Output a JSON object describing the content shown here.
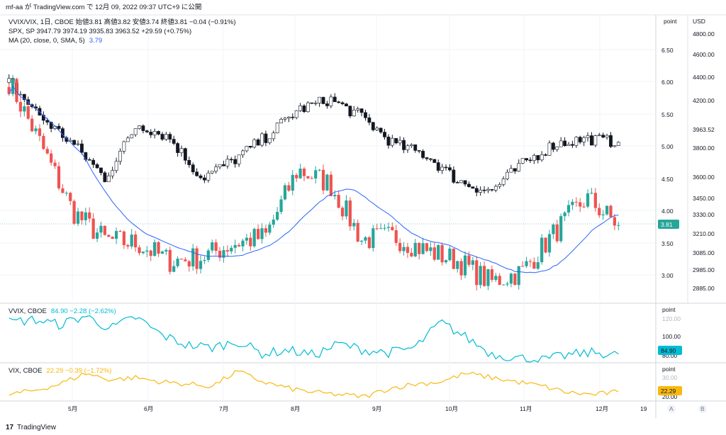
{
  "header": {
    "publish_line": "mf-aa が TradingView.com で 12月 09, 2022 09:37 UTC+9 に公開"
  },
  "footer": {
    "brand": "TradingView"
  },
  "panes": {
    "main": {
      "unit_left": "point",
      "unit_right": "USD",
      "legend": [
        {
          "text": "VVIX/VIX, 1日, CBOE  始値3.81  高値3.82  安値3.74  終値3.81  −0.04 (−0.91%)"
        },
        {
          "text": "SPX, SP  3947.79  3974.19  3935.83  3963.52  +29.59 (+0.75%)"
        },
        {
          "text": "MA (20, close, 0, SMA, 5)",
          "value": "3.79"
        }
      ],
      "left_ticks": [
        "6.50",
        "6.00",
        "5.50",
        "5.00",
        "4.50",
        "4.00",
        "3.50",
        "3.00"
      ],
      "right_ticks": [
        "4800.00",
        "4600.00",
        "4400.00",
        "4200.00",
        "4000.00",
        "3800.00",
        "3600.00",
        "3450.00",
        "3330.00",
        "3210.00",
        "3085.00",
        "2985.00",
        "2885.00"
      ],
      "last_left": "3.81",
      "last_right": "3963.52"
    },
    "vvix": {
      "label": "VVIX, CBOE",
      "value_text": "84.90  −2.28 (−2.62%)",
      "unit": "point",
      "ticks": [
        "120.00",
        "100.00",
        "80.00"
      ],
      "last": "84.90"
    },
    "vix": {
      "label": "VIX, CBOE",
      "value_text": "22.29  −0.39 (−1.72%)",
      "unit": "point",
      "ticks": [
        "30.00",
        "20.00"
      ],
      "last": "22.29"
    }
  },
  "x_axis": {
    "labels": [
      "5月",
      "6月",
      "7月",
      "8月",
      "9月",
      "10月",
      "11月",
      "12月",
      "19"
    ],
    "scale_buttons": [
      "A",
      "B"
    ]
  },
  "colors": {
    "up": "#26a69a",
    "down": "#ef5350",
    "spx": "#131722",
    "ma": "#2962ff",
    "vvix": "#00bcd4",
    "vix": "#f9b810",
    "badge_main": "#26a69a"
  },
  "chart_data": [
    {
      "type": "candlestick",
      "series": [
        {
          "name": "VVIX/VIX",
          "monthly_path_close": [
            5.85,
            4.95,
            4.0,
            3.6,
            3.55,
            3.3,
            3.35,
            3.55,
            3.65,
            4.6,
            4.4,
            3.6,
            3.65,
            3.45,
            3.3,
            3.0,
            3.15,
            3.7,
            4.2,
            3.81
          ],
          "ma20": 3.79,
          "ylim": [
            2.7,
            6.8
          ]
        },
        {
          "name": "SPX",
          "path_close": [
            4400,
            4150,
            3950,
            3700,
            4100,
            4000,
            3700,
            3830,
            4000,
            4200,
            4280,
            4150,
            3950,
            3870,
            3680,
            3600,
            3800,
            3950,
            3990,
            3963.52
          ],
          "ylim": [
            2780,
            4900
          ]
        }
      ]
    },
    {
      "type": "line",
      "series": [
        {
          "name": "VVIX",
          "last": 84.9
        }
      ],
      "ylim": [
        78,
        125
      ]
    },
    {
      "type": "line",
      "series": [
        {
          "name": "VIX",
          "last": 22.29
        }
      ],
      "ylim": [
        18,
        36
      ]
    }
  ]
}
